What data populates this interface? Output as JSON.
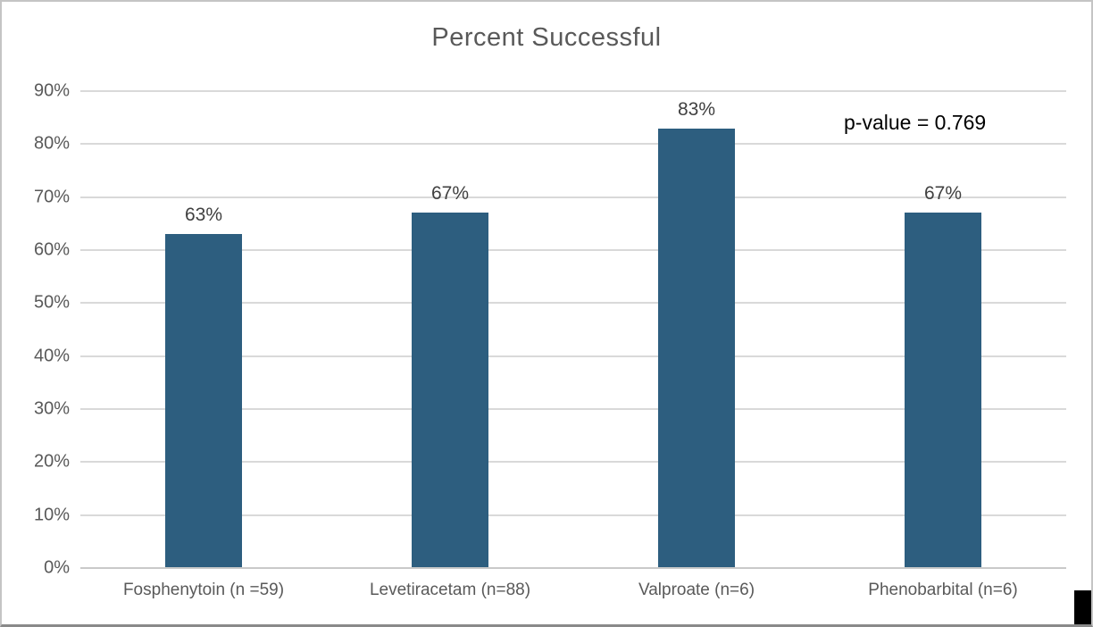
{
  "chart_data": {
    "type": "bar",
    "title": "Percent Successful",
    "categories": [
      "Fosphenytoin (n =59)",
      "Levetiracetam (n=88)",
      "Valproate (n=6)",
      "Phenobarbital (n=6)"
    ],
    "values": [
      63,
      67,
      83,
      67
    ],
    "data_labels": [
      "63%",
      "67%",
      "83%",
      "67%"
    ],
    "annotation": "p-value = 0.769",
    "ylabel": "",
    "xlabel": "",
    "ylim": [
      0,
      90
    ],
    "ytick_step": 10,
    "ytick_labels": [
      "0%",
      "10%",
      "20%",
      "30%",
      "40%",
      "50%",
      "60%",
      "70%",
      "80%",
      "90%"
    ],
    "grid": true,
    "legend": false,
    "colors": {
      "bar_fill": "#2D5E7F",
      "gridline": "#D9D9D9",
      "axis_line": "#C9C9C9",
      "title_text": "#595959",
      "tick_text": "#595959",
      "data_label_text": "#404040",
      "annotation_text": "#000000",
      "background": "#FFFFFF",
      "frame_border": "#C4C4C4",
      "frame_border_bottom": "#8A8A8A"
    }
  }
}
